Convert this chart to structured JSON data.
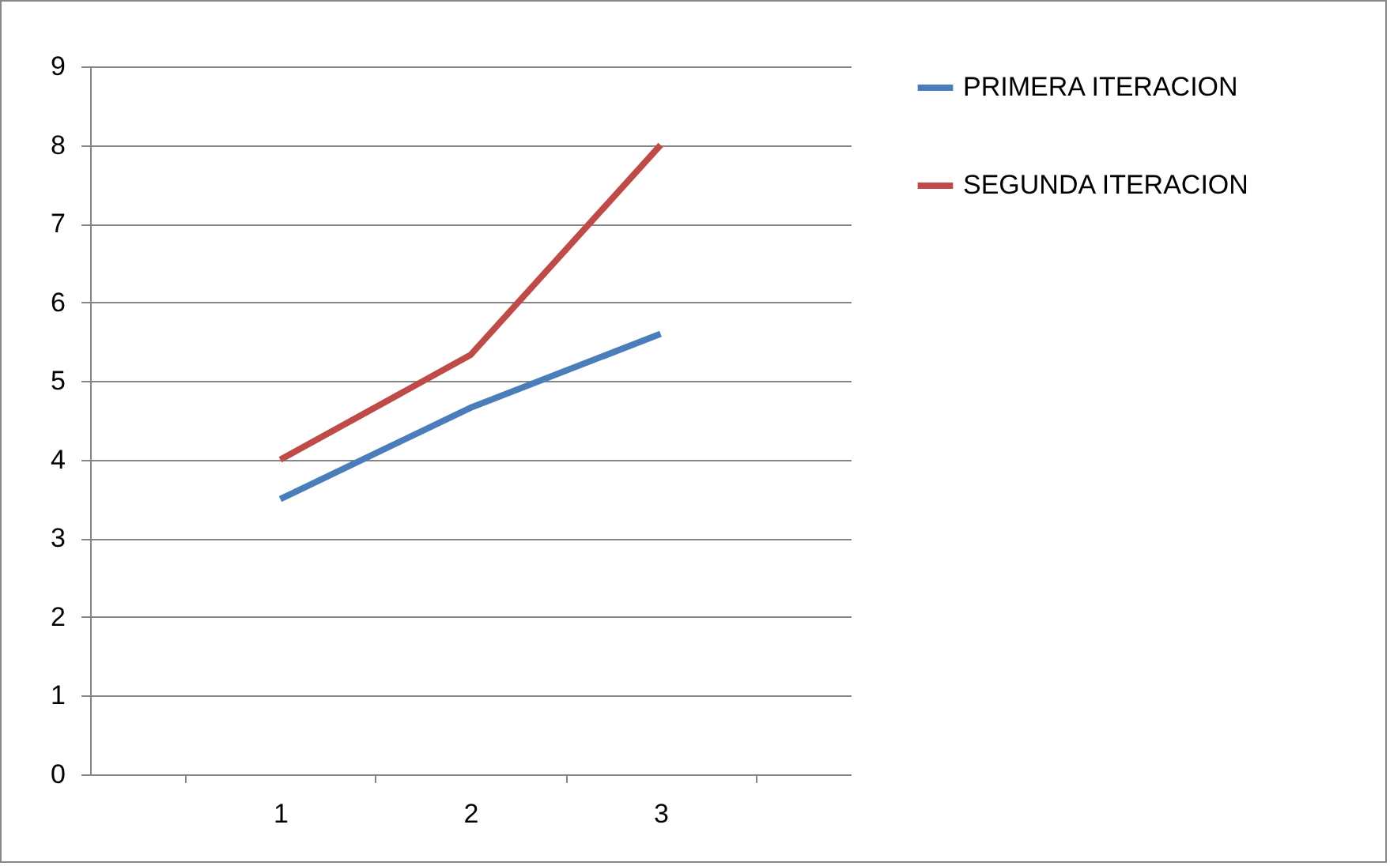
{
  "chart_data": {
    "type": "line",
    "categories": [
      "1",
      "2",
      "3"
    ],
    "series": [
      {
        "name": "PRIMERA ITERACION",
        "color": "#4a7ebb",
        "values": [
          3.5,
          4.66,
          5.6
        ]
      },
      {
        "name": "SEGUNDA ITERACION",
        "color": "#be4b48",
        "values": [
          4,
          5.33,
          8
        ]
      }
    ],
    "ylim": [
      0,
      9
    ],
    "yticks": [
      0,
      1,
      2,
      3,
      4,
      5,
      6,
      7,
      8,
      9
    ],
    "grid": "y",
    "legend": "right",
    "marker": "none",
    "line_style": "solid"
  }
}
